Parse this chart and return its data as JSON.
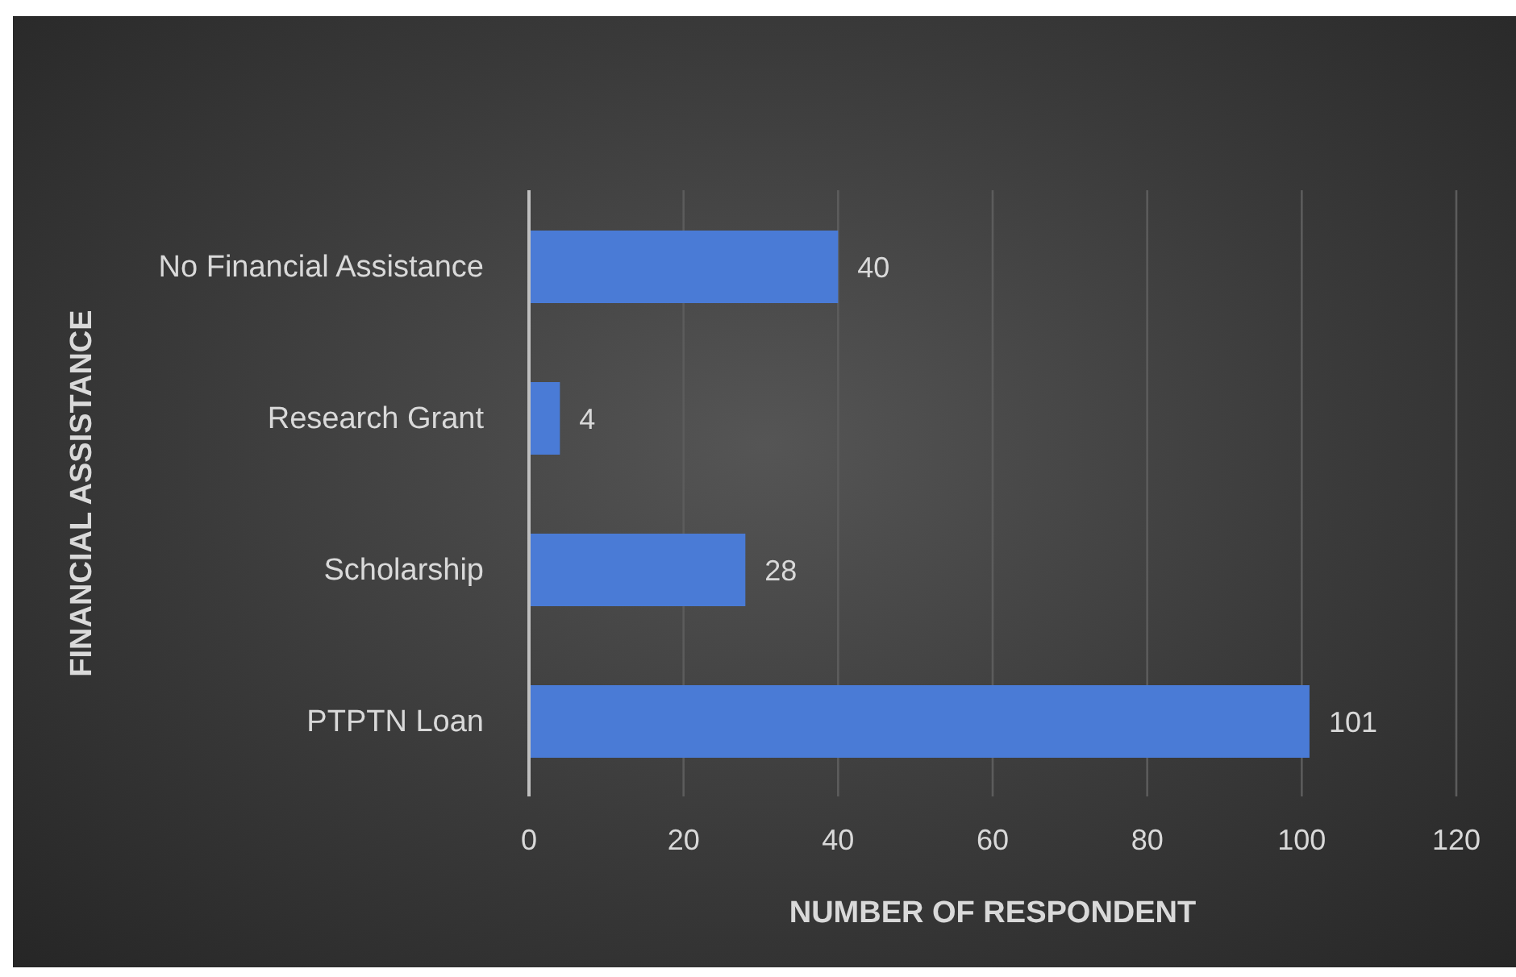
{
  "chart_data": {
    "type": "bar",
    "orientation": "horizontal",
    "xlabel": "NUMBER OF RESPONDENT",
    "ylabel": "FINANCIAL ASSISTANCE",
    "categories": [
      "No Financial Assistance",
      "Research Grant",
      "Scholarship",
      "PTPTN Loan"
    ],
    "values": [
      40,
      4,
      28,
      101
    ],
    "color": "#4a7bd6",
    "xlim": [
      0,
      120
    ],
    "xticks": [
      0,
      20,
      40,
      60,
      80,
      100,
      120
    ],
    "grid": "x",
    "data_labels": true,
    "legend": false
  }
}
